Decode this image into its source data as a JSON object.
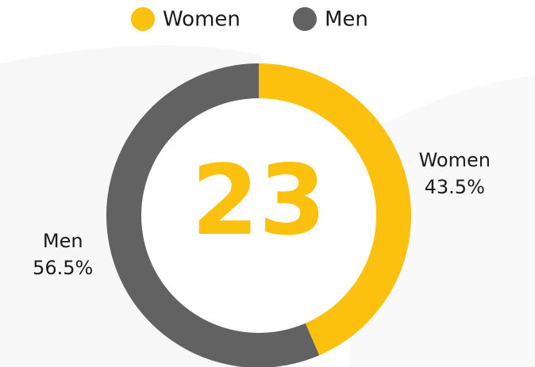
{
  "chart_data": {
    "type": "pie",
    "donut": true,
    "categories": [
      "Women",
      "Men"
    ],
    "values": [
      43.5,
      56.5
    ],
    "value_labels": [
      "43.5%",
      "56.5%"
    ],
    "colors": [
      "#fcc00f",
      "#626262"
    ],
    "center_text": "23",
    "legend": "top"
  }
}
